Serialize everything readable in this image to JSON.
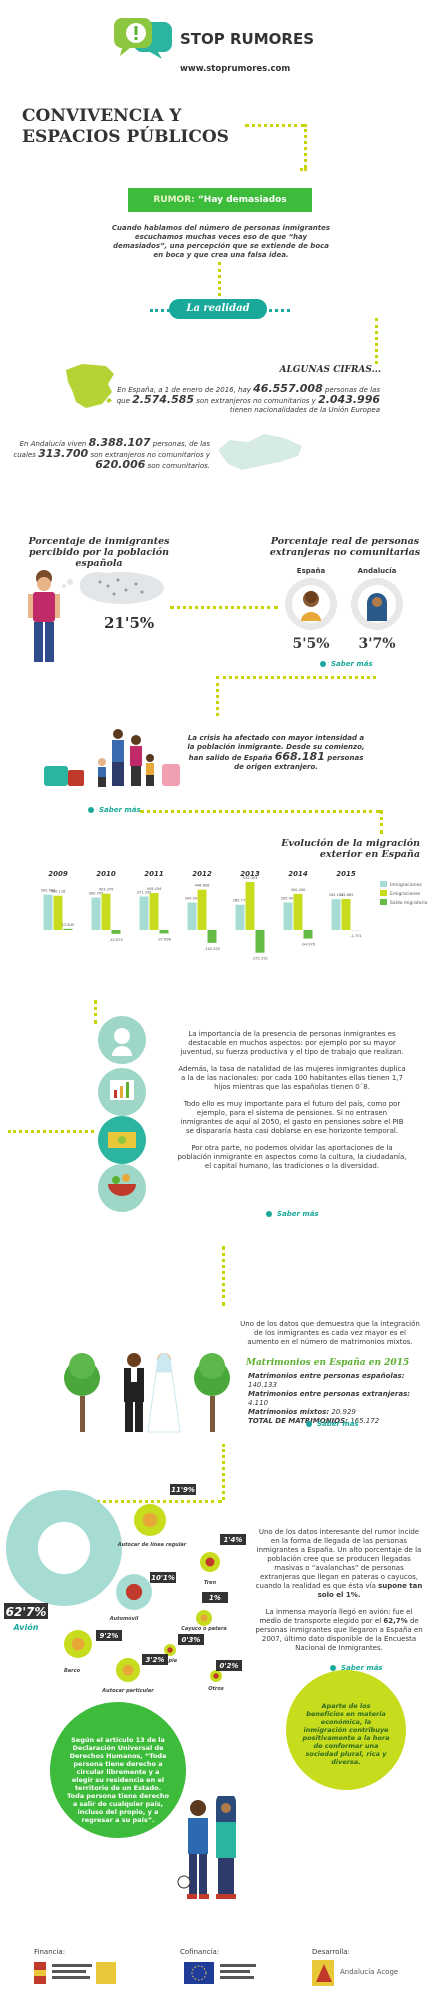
{
  "header": {
    "logo": "STOP RUMORES",
    "url": "www.stoprumores.com"
  },
  "title_lines": [
    "CONVIVENCIA Y",
    "ESPACIOS PÚBLICOS"
  ],
  "rumor": {
    "label": "RUMOR:",
    "text": "“Hay demasiados inmigrantes”"
  },
  "intro": "Cuando hablamos del número de personas inmigrantes escuchamos muchas veces eso de que “hay demasiados”, una percepción que se extiende de boca en boca y que crea una falsa idea.",
  "reality": "La realidad",
  "figures": {
    "heading": "ALGUNAS CIFRAS...",
    "spain": [
      "En España, a 1 de enero de 2016, hay",
      "46.557.008",
      "personas de las que",
      "2.574.585",
      "son extranjeros no comunitarios y",
      "2.043.996",
      "tienen nacionalidades de la Unión Europea"
    ],
    "andalucia": [
      "En Andalucía viven",
      "8.388.107",
      "personas, de las cuales",
      "313.700",
      "son extranjeros no comunitarios y",
      "620.006",
      "son comunitarios."
    ]
  },
  "perception": {
    "perceived_title": "Porcentaje de inmigrantes percibido por la población española",
    "perceived_value": "21'5%",
    "real_title": "Porcentaje real de personas extranjeras no comunitarias",
    "regions": [
      {
        "name": "España",
        "value": "5'5%"
      },
      {
        "name": "Andalucía",
        "value": "3'7%"
      }
    ],
    "link": "Saber más"
  },
  "crisis": {
    "text": [
      "La crisis ha afectado con mayor intensidad a la población inmigrante. Desde su comienzo, han salido de España",
      "668.181",
      "personas de origen extranjero."
    ],
    "link": "Saber más"
  },
  "chart_data": {
    "type": "bar",
    "title": "Evolución de la migración exterior en España",
    "categories": [
      "2009",
      "2010",
      "2011",
      "2012",
      "2013",
      "2014",
      "2015"
    ],
    "series": [
      {
        "name": "Inmigraciones",
        "color": "#a6dcd4",
        "values": [
          392963,
          360705,
          371335,
          304054,
          280772,
          305454,
          342114
        ],
        "value_labels": [
          "392.963",
          "360.705",
          "371.335",
          "304.054",
          "280.772",
          "305.454",
          "342.114"
        ]
      },
      {
        "name": "Emigraciones",
        "color": "#c8dc1e",
        "values": [
          380118,
          403379,
          409034,
          446606,
          532303,
          400430,
          343865
        ],
        "value_labels": [
          "380.118",
          "403.379",
          "409.034",
          "446.606",
          "532.303",
          "400.430",
          "343.865"
        ]
      },
      {
        "name": "Saldo migratorio",
        "color": "#66bb44",
        "values": [
          12845,
          -42675,
          -37698,
          -142552,
          -251531,
          -94976,
          -1751
        ],
        "value_labels": [
          "12.845",
          "-42.675",
          "-37.698",
          "-142.552",
          "-251.531",
          "-94.976",
          "-1.751"
        ]
      }
    ]
  },
  "contributions": {
    "paragraphs": [
      "La importancia de la presencia de personas inmigrantes es destacable en muchos aspectos: por ejemplo por su mayor juventud, su fuerza productiva y el tipo de trabajo que realizan.",
      "Además, la tasa de natalidad de las mujeres inmigrantes duplica a la de las nacionales: por cada 100 habitantes ellas tienen 1,7 hijos mientras que las españolas tienen 0´8.",
      "Todo ello es muy importante para el futuro del país, como por ejemplo, para el sistema de pensiones. Si no entrasen inmigrantes de aquí al 2050, el gasto en pensiones sobre el PIB se dispararía hasta casi doblarse en ese horizonte temporal.",
      "Por otra parte, no podemos olvidar las aportaciones de la población inmigrante en aspectos como la cultura, la ciudadanía, el capital humano, las tradiciones o la diversidad."
    ],
    "link": "Saber más"
  },
  "marriages": {
    "intro": "Uno de los datos que demuestra que la integración de los inmigrantes es cada vez mayor es el aumento en el número de matrimonios mixtos.",
    "title": "Matrimonios en España en 2015",
    "rows": [
      [
        "Matrimonios entre personas españolas:",
        "140.133"
      ],
      [
        "Matrimonios entre personas extranjeras:",
        "4.110"
      ],
      [
        "Matrimonios mixtos:",
        "20.929"
      ],
      [
        "TOTAL DE MATRIMONIOS:",
        "165.172"
      ]
    ],
    "link": "Saber más"
  },
  "transport": {
    "modes": [
      {
        "name": "Avión",
        "value": "62'7%"
      },
      {
        "name": "Autocar de línea regular",
        "value": "11'9%"
      },
      {
        "name": "Automóvil",
        "value": "10'1%"
      },
      {
        "name": "Barco",
        "value": "9'2%"
      },
      {
        "name": "Tren",
        "value": "1'4%"
      },
      {
        "name": "Cayuco o patera",
        "value": "1%"
      },
      {
        "name": "A pie",
        "value": "0'3%"
      },
      {
        "name": "Autocar particular",
        "value": "3'2%"
      },
      {
        "name": "Otros",
        "value": "0'2%"
      }
    ],
    "paragraphs": [
      [
        "Uno de los datos interesante del rumor incide en la forma de llegada de las personas inmigrantes a España. Un alto porcentaje de la población cree que se producen llegadas masivas o “avalanchas” de personas extranjeras que llegan en pateras o cayucos, cuando la realidad es que ésta vía",
        "supone tan solo el 1%."
      ],
      [
        "La inmensa mayoría llegó en avión: fue el medio de transporte elegido por el",
        "62,7%",
        "de personas inmigrantes que llegaron a España en 2007, último dato disponible de la Encuesta Nacional de Inmigrantes."
      ]
    ],
    "link": "Saber más"
  },
  "quotes": {
    "rights": "Según el artículo 13 de la Declaración Universal de Derechos Humanos, “Toda persona tiene derecho a circular libremente y a elegir su residencia en el territorio de un Estado. Toda persona tiene derecho a salir de cualquier país, incluso del propio, y a regresar a su país”.",
    "benefits": "Aparte de los beneficios en materia económica, la inmigración contribuye positivamente a la hora de conformar una sociedad plural, rica y diversa."
  },
  "footer": {
    "labels": [
      "Financia:",
      "Cofinancia:",
      "Desarrolla:"
    ],
    "developer": "Andalucía Acoge"
  }
}
